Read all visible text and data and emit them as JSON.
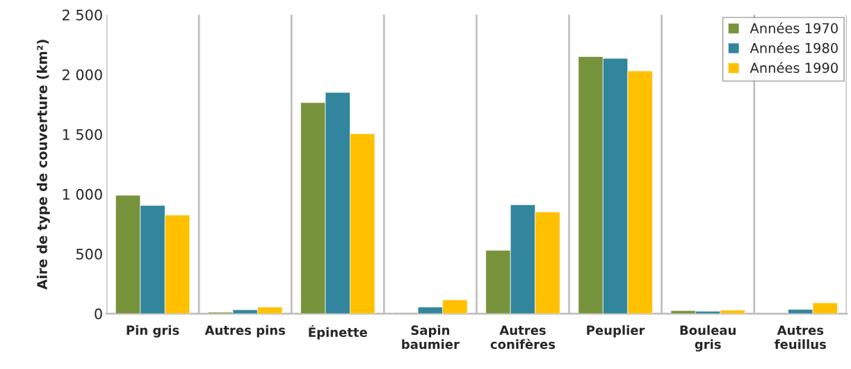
{
  "chart_data": {
    "type": "bar",
    "ylabel": "Aire de type de couverture (km²)",
    "categories": [
      "Pin gris",
      "Autres pins",
      "Épinette",
      "Sapin\nbaumier",
      "Autres\nconifères",
      "Peuplier",
      "Bouleau\ngris",
      "Autres\nfeuillus"
    ],
    "series": [
      {
        "name": "Années 1970",
        "color": "#77933c",
        "values": [
          990,
          12,
          1765,
          8,
          530,
          2150,
          25,
          null
        ]
      },
      {
        "name": "Années 1980",
        "color": "#31859c",
        "values": [
          905,
          32,
          1850,
          55,
          910,
          2135,
          20,
          36
        ]
      },
      {
        "name": "Années 1990",
        "color": "#ffc000",
        "values": [
          825,
          55,
          1505,
          115,
          850,
          2030,
          30,
          90
        ]
      }
    ],
    "ylim": [
      0,
      2500
    ],
    "yticks": [
      0,
      500,
      {
        "value": 1000,
        "label": "1 000"
      },
      {
        "value": 1500,
        "label": "1 500"
      },
      {
        "value": 2000,
        "label": "2 000"
      },
      {
        "value": 2500,
        "label": "2 500"
      }
    ],
    "grid": "x",
    "legend": "top right"
  }
}
